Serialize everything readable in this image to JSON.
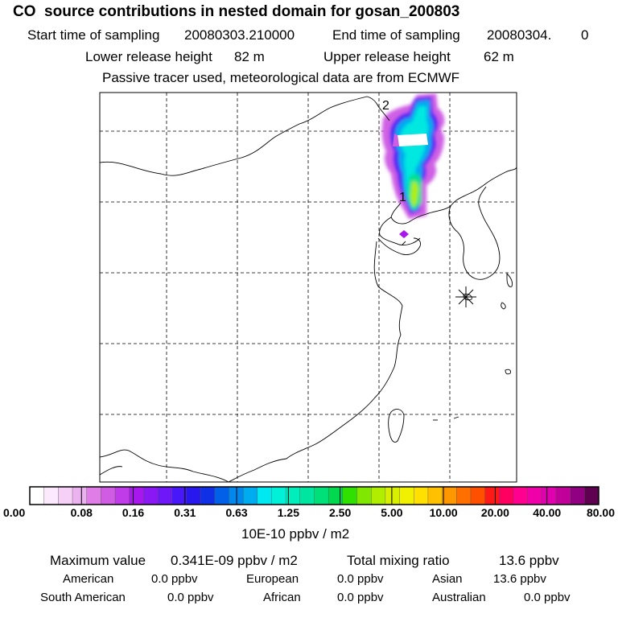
{
  "header": {
    "title": "CO  source contributions in nested domain for gosan_200803",
    "start_label": "Start time of sampling",
    "start_value": "20080303.210000",
    "end_label": "End time of sampling",
    "end_value": "20080304.",
    "end_suffix": "0",
    "lower_label": "Lower release height",
    "lower_value": "82 m",
    "upper_label": "Upper release height",
    "upper_value": "62 m",
    "note": "Passive tracer used, meteorological data are from ECMWF"
  },
  "map": {
    "markers": [
      {
        "label": "1"
      },
      {
        "label": "2"
      }
    ],
    "receptor_icon": "asterisk-receptor-icon"
  },
  "colorbar": {
    "ticks": [
      "0.00",
      "0.08",
      "0.16",
      "0.31",
      "0.63",
      "1.25",
      "2.50",
      "5.00",
      "10.00",
      "20.00",
      "40.00",
      "80.00"
    ],
    "unit": "10E-10 ppbv / m2",
    "colors": [
      "#ffffff",
      "#fde9fd",
      "#f6d0f7",
      "#ecb2f0",
      "#e07ee8",
      "#d05ce4",
      "#bf3ce8",
      "#a818ee",
      "#8a18f4",
      "#6e18f8",
      "#4818f8",
      "#2818ee",
      "#1030e6",
      "#0060e8",
      "#0088ee",
      "#00acf0",
      "#00e8f0",
      "#00f0d8",
      "#00eebc",
      "#00e6a0",
      "#00e078",
      "#00d850",
      "#30e000",
      "#80e800",
      "#b0ee00",
      "#d8f000",
      "#f0f000",
      "#ffe000",
      "#ffc000",
      "#ff9800",
      "#ff7000",
      "#ff5000",
      "#ff1818",
      "#ff0060",
      "#ff0090",
      "#f000a8",
      "#e000b0",
      "#c00098",
      "#900080",
      "#600050"
    ]
  },
  "summary": {
    "max_label": "Maximum value",
    "max_value": "0.341E-09 ppbv / m2",
    "total_label": "Total mixing ratio",
    "total_value": "13.6 ppbv",
    "regions": [
      {
        "name": "American",
        "value": "0.0 ppbv"
      },
      {
        "name": "European",
        "value": "0.0 ppbv"
      },
      {
        "name": "Asian",
        "value": "13.6 ppbv"
      },
      {
        "name": "South American",
        "value": "0.0 ppbv"
      },
      {
        "name": "African",
        "value": "0.0 ppbv"
      },
      {
        "name": "Australian",
        "value": "0.0 ppbv"
      }
    ]
  }
}
